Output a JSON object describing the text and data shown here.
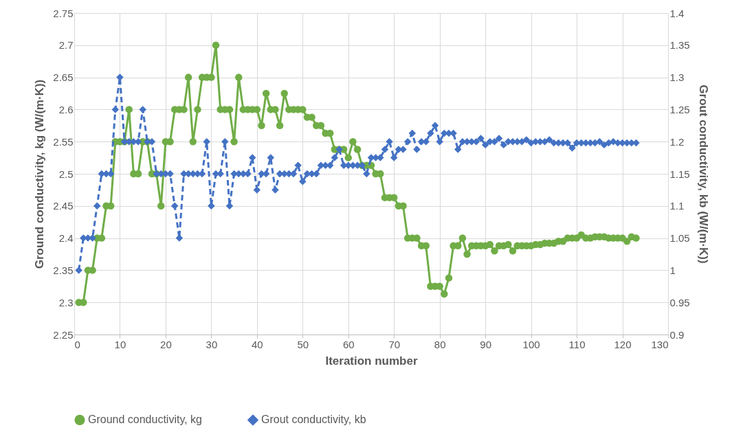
{
  "chart_data": {
    "type": "line",
    "xlabel": "Iteration number",
    "ylabel": "Ground conductivity, kg (W/(m·K))",
    "y2label": "Grout conductivity,  kb (W/(m·K))",
    "x": [
      1,
      2,
      3,
      4,
      5,
      6,
      7,
      8,
      9,
      10,
      11,
      12,
      13,
      14,
      15,
      16,
      17,
      18,
      19,
      20,
      21,
      22,
      23,
      24,
      25,
      26,
      27,
      28,
      29,
      30,
      31,
      32,
      33,
      34,
      35,
      36,
      37,
      38,
      39,
      40,
      41,
      42,
      43,
      44,
      45,
      46,
      47,
      48,
      49,
      50,
      51,
      52,
      53,
      54,
      55,
      56,
      57,
      58,
      59,
      60,
      61,
      62,
      63,
      64,
      65,
      66,
      67,
      68,
      69,
      70,
      71,
      72,
      73,
      74,
      75,
      76,
      77,
      78,
      79,
      80,
      81,
      82,
      83,
      84,
      85,
      86,
      87,
      88,
      89,
      90,
      91,
      92,
      93,
      94,
      95,
      96,
      97,
      98,
      99,
      100,
      101,
      102,
      103,
      104,
      105,
      106,
      107,
      108,
      109,
      110,
      111,
      112,
      113,
      114,
      115,
      116,
      117,
      118,
      119,
      120,
      121,
      122,
      123
    ],
    "xlim": [
      0,
      130
    ],
    "xticks": [
      0,
      10,
      20,
      30,
      40,
      50,
      60,
      70,
      80,
      90,
      100,
      110,
      120,
      130
    ],
    "ylim": [
      2.25,
      2.75
    ],
    "yticks": [
      2.25,
      2.3,
      2.35,
      2.4,
      2.45,
      2.5,
      2.55,
      2.6,
      2.65,
      2.7,
      2.75
    ],
    "y2lim": [
      0.9,
      1.4
    ],
    "y2ticks": [
      0.9,
      0.95,
      1,
      1.05,
      1.1,
      1.15,
      1.2,
      1.25,
      1.3,
      1.35,
      1.4
    ],
    "grid": true,
    "legend": "bottom",
    "series": [
      {
        "name": "Ground conductivity, kg",
        "color": "#70ad47",
        "marker": "circle",
        "line_style": "solid",
        "values": [
          2.3,
          2.3,
          2.35,
          2.35,
          2.4,
          2.4,
          2.45,
          2.45,
          2.55,
          2.55,
          2.55,
          2.6,
          2.5,
          2.5,
          2.55,
          2.55,
          2.5,
          2.5,
          2.45,
          2.55,
          2.55,
          2.6,
          2.6,
          2.6,
          2.65,
          2.55,
          2.6,
          2.65,
          2.65,
          2.65,
          2.7,
          2.6,
          2.6,
          2.6,
          2.55,
          2.65,
          2.6,
          2.6,
          2.6,
          2.6,
          2.575,
          2.625,
          2.6,
          2.6,
          2.575,
          2.625,
          2.6,
          2.6,
          2.6,
          2.6,
          2.588,
          2.588,
          2.575,
          2.575,
          2.563,
          2.563,
          2.538,
          2.538,
          2.538,
          2.525,
          2.55,
          2.538,
          2.513,
          2.513,
          2.513,
          2.5,
          2.5,
          2.463,
          2.463,
          2.463,
          2.45,
          2.45,
          2.4,
          2.4,
          2.4,
          2.388,
          2.388,
          2.325,
          2.325,
          2.325,
          2.313,
          2.338,
          2.388,
          2.388,
          2.4,
          2.375,
          2.388,
          2.388,
          2.388,
          2.388,
          2.39,
          2.38,
          2.388,
          2.388,
          2.39,
          2.38,
          2.388,
          2.388,
          2.388,
          2.388,
          2.39,
          2.39,
          2.392,
          2.392,
          2.392,
          2.395,
          2.395,
          2.4,
          2.4,
          2.4,
          2.405,
          2.4,
          2.4,
          2.402,
          2.402,
          2.402,
          2.4,
          2.4,
          2.4,
          2.4,
          2.395,
          2.402,
          2.4
        ]
      },
      {
        "name": "Grout conductivity, kb",
        "color": "#4472c4",
        "marker": "diamond",
        "line_style": "dashed",
        "axis": "y2",
        "values": [
          1,
          1.05,
          1.05,
          1.05,
          1.1,
          1.15,
          1.15,
          1.15,
          1.25,
          1.3,
          1.2,
          1.2,
          1.2,
          1.2,
          1.25,
          1.2,
          1.2,
          1.15,
          1.15,
          1.15,
          1.15,
          1.1,
          1.05,
          1.15,
          1.15,
          1.15,
          1.15,
          1.15,
          1.2,
          1.1,
          1.15,
          1.15,
          1.2,
          1.1,
          1.15,
          1.15,
          1.15,
          1.15,
          1.175,
          1.125,
          1.15,
          1.15,
          1.175,
          1.125,
          1.15,
          1.15,
          1.15,
          1.15,
          1.163,
          1.138,
          1.15,
          1.15,
          1.15,
          1.163,
          1.163,
          1.163,
          1.175,
          1.188,
          1.163,
          1.163,
          1.163,
          1.163,
          1.163,
          1.15,
          1.175,
          1.175,
          1.175,
          1.188,
          1.2,
          1.175,
          1.188,
          1.188,
          1.2,
          1.213,
          1.188,
          1.2,
          1.2,
          1.213,
          1.225,
          1.2,
          1.213,
          1.213,
          1.213,
          1.188,
          1.2,
          1.2,
          1.2,
          1.2,
          1.205,
          1.195,
          1.2,
          1.2,
          1.205,
          1.195,
          1.2,
          1.2,
          1.2,
          1.2,
          1.203,
          1.198,
          1.2,
          1.2,
          1.2,
          1.203,
          1.198,
          1.198,
          1.198,
          1.198,
          1.19,
          1.198,
          1.198,
          1.198,
          1.198,
          1.198,
          1.2,
          1.195,
          1.198,
          1.2,
          1.198,
          1.198,
          1.198,
          1.198,
          1.198
        ]
      }
    ]
  }
}
